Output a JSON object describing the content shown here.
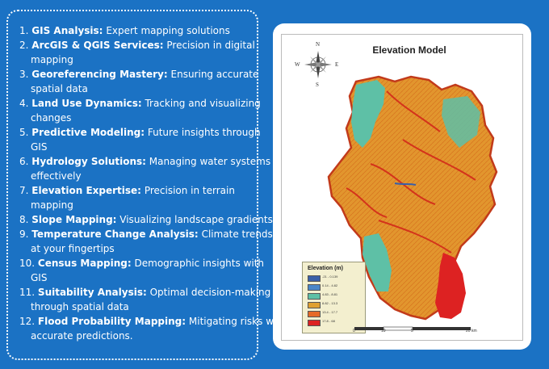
{
  "services": [
    {
      "number": "1.",
      "bold": "GIS Analysis:",
      "rest": "Expert mapping solutions",
      "cont": ""
    },
    {
      "number": "2.",
      "bold": "ArcGIS & QGIS Services:",
      "rest": "Precision in digital",
      "cont": "mapping"
    },
    {
      "number": "3.",
      "bold": "Georeferencing Mastery:",
      "rest": "Ensuring accurate",
      "cont": "spatial data"
    },
    {
      "number": "4.",
      "bold": "Land Use Dynamics:",
      "rest": "Tracking and visualizing",
      "cont": "changes"
    },
    {
      "number": "5.",
      "bold": "Predictive Modeling:",
      "rest": "Future insights through",
      "cont": "GIS"
    },
    {
      "number": "6.",
      "bold": "Hydrology Solutions:",
      "rest": "Managing water systems",
      "cont": "effectively"
    },
    {
      "number": "7.",
      "bold": "Elevation Expertise:",
      "rest": "Precision in terrain",
      "cont": "mapping"
    },
    {
      "number": "8.",
      "bold": "Slope Mapping:",
      "rest": "Visualizing landscape gradients",
      "cont": ""
    },
    {
      "number": "9.",
      "bold": "Temperature Change Analysis:",
      "rest": "Climate trends",
      "cont": "at your fingertips"
    },
    {
      "number": "10.",
      "bold": "Census Mapping:",
      "rest": "Demographic insights with",
      "cont": "GIS"
    },
    {
      "number": "11.",
      "bold": "Suitability Analysis:",
      "rest": "Optimal decision-making",
      "cont": "through spatial data"
    },
    {
      "number": "12.",
      "bold": "Flood Probability Mapping:",
      "rest": "Mitigating risks with",
      "cont": "accurate predictions."
    }
  ],
  "map": {
    "title": "Elevation Model",
    "compass": {
      "n": "N",
      "s": "S",
      "e": "E",
      "w": "W"
    },
    "legend_title": "Elevation (m)",
    "legend": [
      {
        "label": "-21 - 0.139",
        "color": "#3a5fa8"
      },
      {
        "label": "0.14 - 4.82",
        "color": "#4a86c8"
      },
      {
        "label": "4.83 - 8.81",
        "color": "#5ec0a6"
      },
      {
        "label": "8.82 - 13.3",
        "color": "#e0a030"
      },
      {
        "label": "13.4 - 17.7",
        "color": "#e66a28"
      },
      {
        "label": "17.8 - 68",
        "color": "#dd2222"
      }
    ],
    "scale": [
      "0",
      "10",
      "5",
      "20 km"
    ]
  }
}
